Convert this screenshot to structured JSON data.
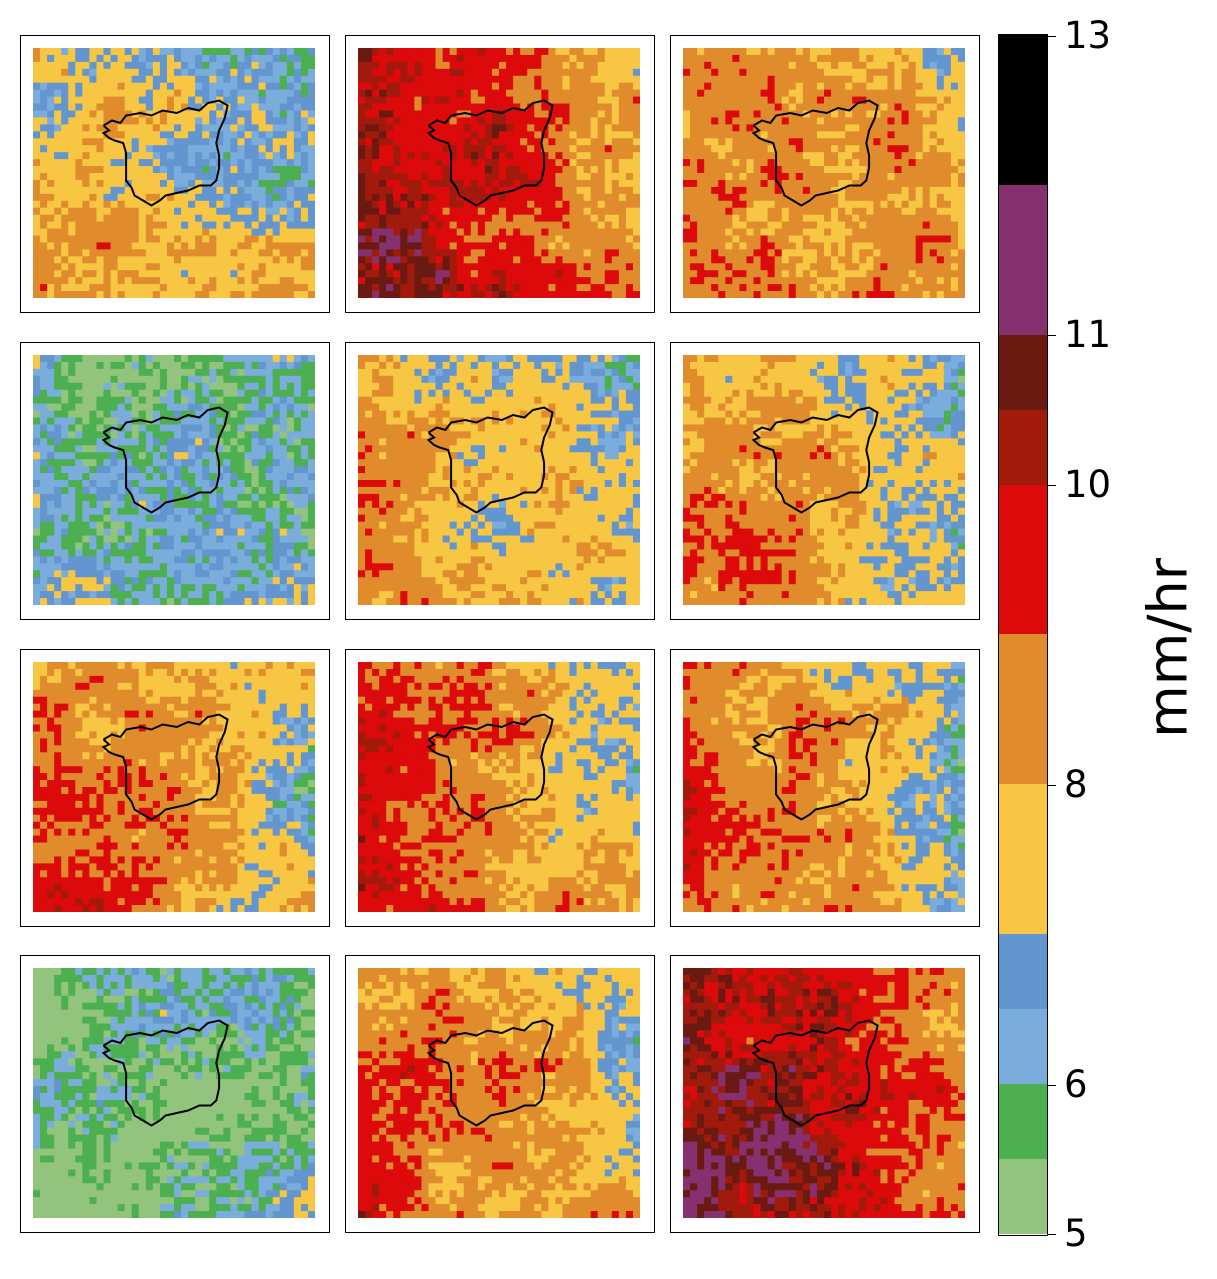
{
  "chart_data": {
    "type": "heatmap",
    "grid": {
      "rows": 4,
      "cols": 3
    },
    "panels": [
      {
        "row": 0,
        "col": 0,
        "dominant_bin": [
          6,
          7
        ],
        "mean": 7.2
      },
      {
        "row": 0,
        "col": 1,
        "dominant_bin": [
          8,
          9
        ],
        "mean": 9.3
      },
      {
        "row": 0,
        "col": 2,
        "dominant_bin": [
          8,
          9
        ],
        "mean": 8.1
      },
      {
        "row": 1,
        "col": 0,
        "dominant_bin": [
          5.5,
          6
        ],
        "mean": 6.2
      },
      {
        "row": 1,
        "col": 1,
        "dominant_bin": [
          7,
          8
        ],
        "mean": 7.5
      },
      {
        "row": 1,
        "col": 2,
        "dominant_bin": [
          7,
          8
        ],
        "mean": 7.6
      },
      {
        "row": 2,
        "col": 0,
        "dominant_bin": [
          8,
          9
        ],
        "mean": 7.8
      },
      {
        "row": 2,
        "col": 1,
        "dominant_bin": [
          8,
          9
        ],
        "mean": 8.3
      },
      {
        "row": 2,
        "col": 2,
        "dominant_bin": [
          7,
          8
        ],
        "mean": 8.0
      },
      {
        "row": 3,
        "col": 0,
        "dominant_bin": [
          5,
          6
        ],
        "mean": 5.8
      },
      {
        "row": 3,
        "col": 1,
        "dominant_bin": [
          7,
          8
        ],
        "mean": 8.1
      },
      {
        "row": 3,
        "col": 2,
        "dominant_bin": [
          9,
          10
        ],
        "mean": 9.7
      }
    ],
    "colorbar": {
      "label": "mm/hr",
      "range": [
        5,
        13
      ],
      "boundaries": [
        5,
        5.5,
        6,
        6.5,
        7,
        8,
        9,
        10,
        10.5,
        11,
        12,
        13
      ],
      "colors": [
        "#93c47d",
        "#4caf50",
        "#7aaddc",
        "#6395cf",
        "#f7c643",
        "#e08c2c",
        "#dc0a0a",
        "#a11a0c",
        "#6a1a10",
        "#86306f",
        "#000000"
      ],
      "ticks": [
        "5",
        "6",
        "8",
        "10",
        "11",
        "13"
      ]
    },
    "outline_color": "#000000"
  }
}
